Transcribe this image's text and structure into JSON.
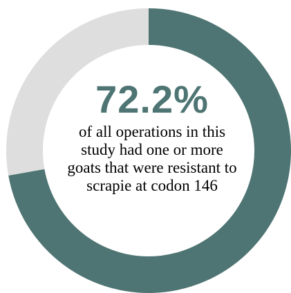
{
  "chart_data": {
    "type": "pie",
    "variant": "donut",
    "value_percent": 72.2,
    "value_label": "72.2%",
    "caption": "of all operations in this study had one or more goats that were resistant to scrapie at codon 146",
    "slices": [
      {
        "value": 72.2,
        "color": "#4e7573"
      },
      {
        "value": 27.8,
        "color": "#dedede"
      }
    ],
    "start_angle_deg": 0,
    "direction": "clockwise"
  },
  "colors": {
    "accent": "#4e7573",
    "remainder": "#dedede",
    "text": "#000000"
  }
}
